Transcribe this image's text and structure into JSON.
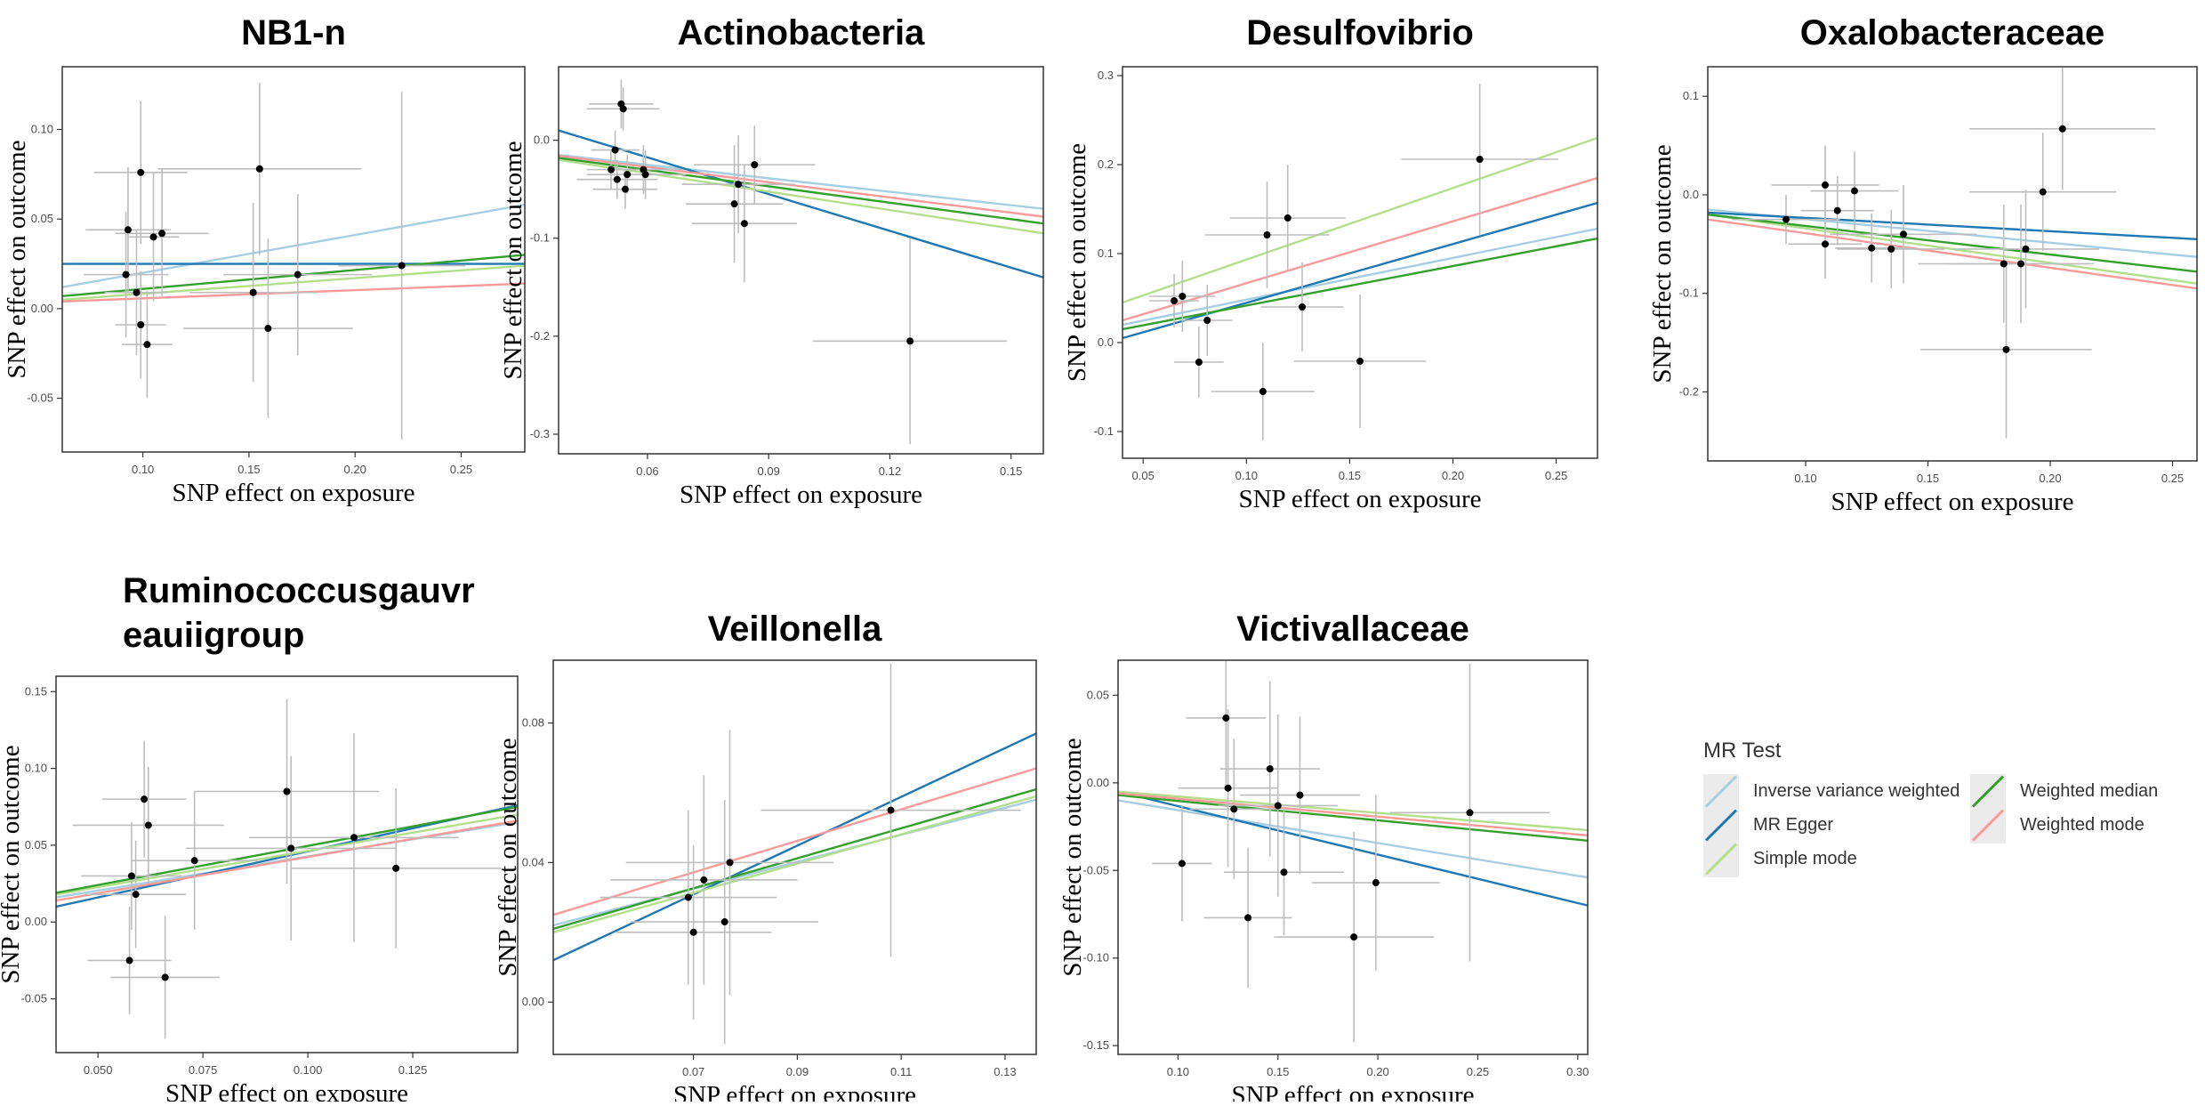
{
  "colors": {
    "ivw": "#a6cee3",
    "egger": "#1f78b4",
    "simple": "#b2df8a",
    "wmedian": "#33a02c",
    "wmode": "#fb9a99",
    "point": "#000000",
    "errorbar": "#bdbdbd",
    "frame": "#333333"
  },
  "shared": {
    "xlabel": "SNP effect on exposure",
    "ylabel": "SNP effect on outcome"
  },
  "legend": {
    "title": "MR Test",
    "items": [
      {
        "key": "ivw",
        "label": "Inverse variance weighted"
      },
      {
        "key": "egger",
        "label": "MR Egger"
      },
      {
        "key": "simple",
        "label": "Simple mode"
      },
      {
        "key": "wmedian",
        "label": "Weighted median"
      },
      {
        "key": "wmode",
        "label": "Weighted mode"
      }
    ]
  },
  "chart_data": [
    {
      "type": "scatter",
      "title": "NB1-n",
      "xlim": [
        0.062,
        0.28
      ],
      "ylim": [
        -0.08,
        0.135
      ],
      "xticks": [
        "0.10",
        "0.15",
        "0.20",
        "0.25"
      ],
      "yticks": [
        "-0.05",
        "0.00",
        "0.05",
        "0.10"
      ],
      "points": [
        {
          "x": 0.093,
          "y": 0.044,
          "xe": 0.02,
          "ye": 0.035
        },
        {
          "x": 0.092,
          "y": 0.019,
          "xe": 0.02,
          "ye": 0.035
        },
        {
          "x": 0.097,
          "y": 0.009,
          "xe": 0.015,
          "ye": 0.035
        },
        {
          "x": 0.099,
          "y": 0.076,
          "xe": 0.022,
          "ye": 0.04
        },
        {
          "x": 0.099,
          "y": -0.009,
          "xe": 0.012,
          "ye": 0.03
        },
        {
          "x": 0.102,
          "y": -0.02,
          "xe": 0.012,
          "ye": 0.03
        },
        {
          "x": 0.105,
          "y": 0.04,
          "xe": 0.012,
          "ye": 0.036
        },
        {
          "x": 0.109,
          "y": 0.042,
          "xe": 0.022,
          "ye": 0.036
        },
        {
          "x": 0.152,
          "y": 0.009,
          "xe": 0.03,
          "ye": 0.05
        },
        {
          "x": 0.155,
          "y": 0.078,
          "xe": 0.048,
          "ye": 0.048
        },
        {
          "x": 0.159,
          "y": -0.011,
          "xe": 0.04,
          "ye": 0.05
        },
        {
          "x": 0.173,
          "y": 0.019,
          "xe": 0.035,
          "ye": 0.045
        },
        {
          "x": 0.222,
          "y": 0.024,
          "xe": 0.03,
          "ye": 0.097
        }
      ],
      "lines": [
        {
          "method": "ivw",
          "y0": 0.012,
          "y1": 0.058
        },
        {
          "method": "egger",
          "y0": 0.025,
          "y1": 0.025
        },
        {
          "method": "simple",
          "y0": 0.005,
          "y1": 0.024
        },
        {
          "method": "wmedian",
          "y0": 0.007,
          "y1": 0.03
        },
        {
          "method": "wmode",
          "y0": 0.004,
          "y1": 0.014
        }
      ]
    },
    {
      "type": "scatter",
      "title": "Actinobacteria",
      "xlim": [
        0.038,
        0.158
      ],
      "ylim": [
        -0.32,
        0.075
      ],
      "xticks": [
        "0.06",
        "0.09",
        "0.12",
        "0.15"
      ],
      "yticks": [
        "-0.3",
        "-0.2",
        "-0.1",
        "0.0"
      ],
      "points": [
        {
          "x": 0.0535,
          "y": 0.037,
          "xe": 0.008,
          "ye": 0.025
        },
        {
          "x": 0.054,
          "y": 0.032,
          "xe": 0.009,
          "ye": 0.022
        },
        {
          "x": 0.052,
          "y": -0.01,
          "xe": 0.006,
          "ye": 0.02
        },
        {
          "x": 0.051,
          "y": -0.03,
          "xe": 0.006,
          "ye": 0.02
        },
        {
          "x": 0.0525,
          "y": -0.04,
          "xe": 0.01,
          "ye": 0.02
        },
        {
          "x": 0.055,
          "y": -0.035,
          "xe": 0.01,
          "ye": 0.02
        },
        {
          "x": 0.0545,
          "y": -0.05,
          "xe": 0.008,
          "ye": 0.02
        },
        {
          "x": 0.059,
          "y": -0.03,
          "xe": 0.01,
          "ye": 0.025
        },
        {
          "x": 0.0595,
          "y": -0.035,
          "xe": 0.01,
          "ye": 0.025
        },
        {
          "x": 0.0815,
          "y": -0.065,
          "xe": 0.012,
          "ye": 0.06
        },
        {
          "x": 0.0825,
          "y": -0.045,
          "xe": 0.014,
          "ye": 0.05
        },
        {
          "x": 0.084,
          "y": -0.085,
          "xe": 0.013,
          "ye": 0.06
        },
        {
          "x": 0.0865,
          "y": -0.025,
          "xe": 0.015,
          "ye": 0.04
        },
        {
          "x": 0.125,
          "y": -0.205,
          "xe": 0.024,
          "ye": 0.105
        }
      ],
      "lines": [
        {
          "method": "ivw",
          "y0": -0.015,
          "y1": -0.07
        },
        {
          "method": "egger",
          "y0": 0.01,
          "y1": -0.14
        },
        {
          "method": "simple",
          "y0": -0.02,
          "y1": -0.095
        },
        {
          "method": "wmedian",
          "y0": -0.018,
          "y1": -0.085
        },
        {
          "method": "wmode",
          "y0": -0.016,
          "y1": -0.078
        }
      ]
    },
    {
      "type": "scatter",
      "title": "Desulfovibrio",
      "xlim": [
        0.04,
        0.27
      ],
      "ylim": [
        -0.13,
        0.31
      ],
      "xticks": [
        "0.05",
        "0.10",
        "0.15",
        "0.20",
        "0.25"
      ],
      "yticks": [
        "-0.1",
        "0.0",
        "0.1",
        "0.2",
        "0.3"
      ],
      "points": [
        {
          "x": 0.065,
          "y": 0.047,
          "xe": 0.012,
          "ye": 0.03
        },
        {
          "x": 0.069,
          "y": 0.052,
          "xe": 0.016,
          "ye": 0.04
        },
        {
          "x": 0.077,
          "y": -0.022,
          "xe": 0.012,
          "ye": 0.04
        },
        {
          "x": 0.081,
          "y": 0.025,
          "xe": 0.012,
          "ye": 0.04
        },
        {
          "x": 0.108,
          "y": -0.055,
          "xe": 0.025,
          "ye": 0.055
        },
        {
          "x": 0.11,
          "y": 0.121,
          "xe": 0.03,
          "ye": 0.06
        },
        {
          "x": 0.12,
          "y": 0.14,
          "xe": 0.028,
          "ye": 0.06
        },
        {
          "x": 0.127,
          "y": 0.04,
          "xe": 0.02,
          "ye": 0.05
        },
        {
          "x": 0.155,
          "y": -0.021,
          "xe": 0.032,
          "ye": 0.075
        },
        {
          "x": 0.213,
          "y": 0.206,
          "xe": 0.038,
          "ye": 0.085
        }
      ],
      "lines": [
        {
          "method": "ivw",
          "y0": 0.02,
          "y1": 0.128
        },
        {
          "method": "egger",
          "y0": 0.005,
          "y1": 0.157
        },
        {
          "method": "simple",
          "y0": 0.045,
          "y1": 0.23
        },
        {
          "method": "wmedian",
          "y0": 0.015,
          "y1": 0.117
        },
        {
          "method": "wmode",
          "y0": 0.025,
          "y1": 0.185
        }
      ]
    },
    {
      "type": "scatter",
      "title": "Oxalobacteraceae",
      "xlim": [
        0.06,
        0.26
      ],
      "ylim": [
        -0.27,
        0.13
      ],
      "xticks": [
        "0.10",
        "0.15",
        "0.20",
        "0.25"
      ],
      "yticks": [
        "-0.2",
        "-0.1",
        "0.0",
        "0.1"
      ],
      "points": [
        {
          "x": 0.092,
          "y": -0.025,
          "xe": 0.022,
          "ye": 0.025
        },
        {
          "x": 0.108,
          "y": 0.01,
          "xe": 0.022,
          "ye": 0.04
        },
        {
          "x": 0.108,
          "y": -0.05,
          "xe": 0.015,
          "ye": 0.035
        },
        {
          "x": 0.113,
          "y": -0.016,
          "xe": 0.015,
          "ye": 0.035
        },
        {
          "x": 0.12,
          "y": 0.004,
          "xe": 0.018,
          "ye": 0.04
        },
        {
          "x": 0.127,
          "y": -0.054,
          "xe": 0.015,
          "ye": 0.035
        },
        {
          "x": 0.135,
          "y": -0.055,
          "xe": 0.022,
          "ye": 0.04
        },
        {
          "x": 0.14,
          "y": -0.04,
          "xe": 0.03,
          "ye": 0.05
        },
        {
          "x": 0.181,
          "y": -0.07,
          "xe": 0.035,
          "ye": 0.06
        },
        {
          "x": 0.182,
          "y": -0.157,
          "xe": 0.035,
          "ye": 0.09
        },
        {
          "x": 0.188,
          "y": -0.07,
          "xe": 0.03,
          "ye": 0.06
        },
        {
          "x": 0.19,
          "y": -0.055,
          "xe": 0.03,
          "ye": 0.06
        },
        {
          "x": 0.197,
          "y": 0.003,
          "xe": 0.03,
          "ye": 0.06
        },
        {
          "x": 0.205,
          "y": 0.067,
          "xe": 0.038,
          "ye": 0.062
        }
      ],
      "lines": [
        {
          "method": "ivw",
          "y0": -0.015,
          "y1": -0.063
        },
        {
          "method": "egger",
          "y0": -0.018,
          "y1": -0.045
        },
        {
          "method": "simple",
          "y0": -0.02,
          "y1": -0.09
        },
        {
          "method": "wmedian",
          "y0": -0.02,
          "y1": -0.078
        },
        {
          "method": "wmode",
          "y0": -0.025,
          "y1": -0.095
        }
      ]
    },
    {
      "type": "scatter",
      "title": "Ruminococcusgauvr\neauiigroup",
      "xlim": [
        0.04,
        0.15
      ],
      "ylim": [
        -0.085,
        0.16
      ],
      "xticks": [
        "0.050",
        "0.075",
        "0.100",
        "0.125"
      ],
      "yticks": [
        "-0.05",
        "0.00",
        "0.05",
        "0.10",
        "0.15"
      ],
      "points": [
        {
          "x": 0.0575,
          "y": -0.025,
          "xe": 0.01,
          "ye": 0.035
        },
        {
          "x": 0.058,
          "y": 0.03,
          "xe": 0.012,
          "ye": 0.035
        },
        {
          "x": 0.059,
          "y": 0.018,
          "xe": 0.012,
          "ye": 0.035
        },
        {
          "x": 0.061,
          "y": 0.08,
          "xe": 0.01,
          "ye": 0.038
        },
        {
          "x": 0.062,
          "y": 0.063,
          "xe": 0.018,
          "ye": 0.038
        },
        {
          "x": 0.066,
          "y": -0.036,
          "xe": 0.013,
          "ye": 0.04
        },
        {
          "x": 0.073,
          "y": 0.04,
          "xe": 0.015,
          "ye": 0.045
        },
        {
          "x": 0.095,
          "y": 0.085,
          "xe": 0.022,
          "ye": 0.06
        },
        {
          "x": 0.096,
          "y": 0.048,
          "xe": 0.025,
          "ye": 0.06
        },
        {
          "x": 0.111,
          "y": 0.055,
          "xe": 0.025,
          "ye": 0.068
        },
        {
          "x": 0.121,
          "y": 0.035,
          "xe": 0.025,
          "ye": 0.052
        }
      ],
      "lines": [
        {
          "method": "ivw",
          "y0": 0.016,
          "y1": 0.065
        },
        {
          "method": "egger",
          "y0": 0.01,
          "y1": 0.076
        },
        {
          "method": "simple",
          "y0": 0.018,
          "y1": 0.07
        },
        {
          "method": "wmedian",
          "y0": 0.019,
          "y1": 0.075
        },
        {
          "method": "wmode",
          "y0": 0.014,
          "y1": 0.066
        }
      ]
    },
    {
      "type": "scatter",
      "title": "Veillonella",
      "xlim": [
        0.043,
        0.136
      ],
      "ylim": [
        -0.015,
        0.098
      ],
      "xticks": [
        "0.07",
        "0.09",
        "0.11",
        "0.13"
      ],
      "yticks": [
        "0.00",
        "0.04",
        "0.08"
      ],
      "points": [
        {
          "x": 0.069,
          "y": 0.03,
          "xe": 0.017,
          "ye": 0.025
        },
        {
          "x": 0.07,
          "y": 0.02,
          "xe": 0.015,
          "ye": 0.025
        },
        {
          "x": 0.072,
          "y": 0.035,
          "xe": 0.018,
          "ye": 0.03
        },
        {
          "x": 0.076,
          "y": 0.023,
          "xe": 0.018,
          "ye": 0.035
        },
        {
          "x": 0.077,
          "y": 0.04,
          "xe": 0.02,
          "ye": 0.038
        },
        {
          "x": 0.108,
          "y": 0.055,
          "xe": 0.025,
          "ye": 0.042
        }
      ],
      "lines": [
        {
          "method": "ivw",
          "y0": 0.022,
          "y1": 0.058
        },
        {
          "method": "egger",
          "y0": 0.012,
          "y1": 0.077
        },
        {
          "method": "simple",
          "y0": 0.02,
          "y1": 0.059
        },
        {
          "method": "wmedian",
          "y0": 0.021,
          "y1": 0.061
        },
        {
          "method": "wmode",
          "y0": 0.025,
          "y1": 0.067
        }
      ]
    },
    {
      "type": "scatter",
      "title": "Victivallaceae",
      "xlim": [
        0.07,
        0.305
      ],
      "ylim": [
        -0.155,
        0.07
      ],
      "xticks": [
        "0.10",
        "0.15",
        "0.20",
        "0.25",
        "0.30"
      ],
      "yticks": [
        "-0.15",
        "-0.10",
        "-0.05",
        "0.00",
        "0.05"
      ],
      "points": [
        {
          "x": 0.102,
          "y": -0.046,
          "xe": 0.015,
          "ye": 0.033
        },
        {
          "x": 0.124,
          "y": 0.037,
          "xe": 0.02,
          "ye": 0.038
        },
        {
          "x": 0.125,
          "y": -0.003,
          "xe": 0.025,
          "ye": 0.045
        },
        {
          "x": 0.128,
          "y": -0.015,
          "xe": 0.022,
          "ye": 0.04
        },
        {
          "x": 0.135,
          "y": -0.077,
          "xe": 0.022,
          "ye": 0.04
        },
        {
          "x": 0.146,
          "y": 0.008,
          "xe": 0.025,
          "ye": 0.05
        },
        {
          "x": 0.15,
          "y": -0.013,
          "xe": 0.03,
          "ye": 0.052
        },
        {
          "x": 0.153,
          "y": -0.051,
          "xe": 0.03,
          "ye": 0.036
        },
        {
          "x": 0.161,
          "y": -0.007,
          "xe": 0.03,
          "ye": 0.045
        },
        {
          "x": 0.188,
          "y": -0.088,
          "xe": 0.04,
          "ye": 0.06
        },
        {
          "x": 0.199,
          "y": -0.057,
          "xe": 0.032,
          "ye": 0.05
        },
        {
          "x": 0.246,
          "y": -0.017,
          "xe": 0.04,
          "ye": 0.085
        }
      ],
      "lines": [
        {
          "method": "ivw",
          "y0": -0.01,
          "y1": -0.054
        },
        {
          "method": "egger",
          "y0": -0.005,
          "y1": -0.07
        },
        {
          "method": "simple",
          "y0": -0.005,
          "y1": -0.027
        },
        {
          "method": "wmedian",
          "y0": -0.007,
          "y1": -0.033
        },
        {
          "method": "wmode",
          "y0": -0.006,
          "y1": -0.03
        }
      ]
    }
  ]
}
